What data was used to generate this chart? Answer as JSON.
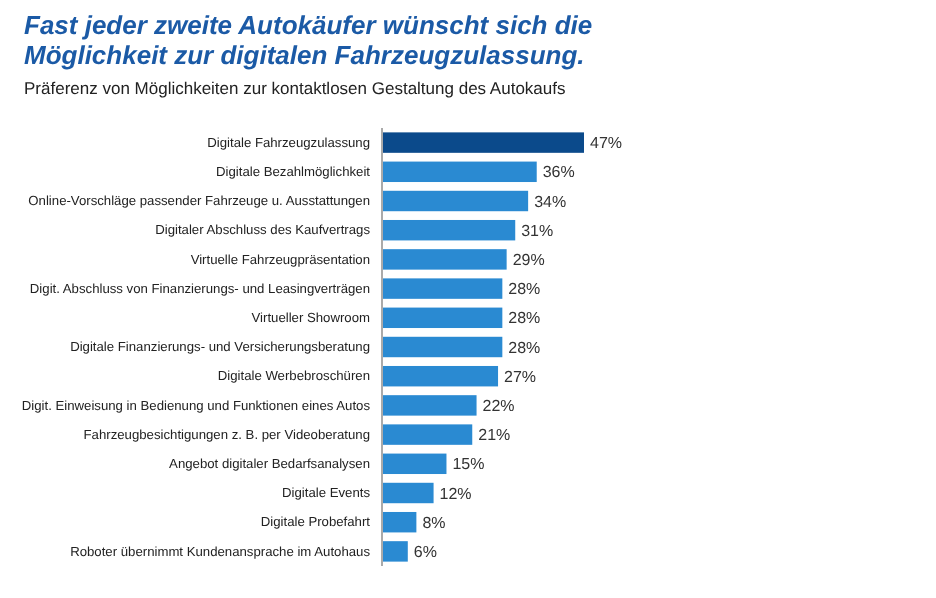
{
  "chart_data": {
    "type": "bar",
    "orientation": "horizontal",
    "title": "Fast jeder zweite Autokäufer wünscht sich die Möglichkeit zur digitalen Fahrzeugzulassung.",
    "subtitle": "Präferenz von Möglichkeiten zur kontaktlosen Gestaltung des Autokaufs",
    "categories": [
      "Digitale Fahrzeugzulassung",
      "Digitale Bezahlmöglichkeit",
      "Online-Vorschläge passender Fahrzeuge u. Ausstattungen",
      "Digitaler Abschluss des Kaufvertrags",
      "Virtuelle Fahrzeugpräsentation",
      "Digit. Abschluss von Finanzierungs- und Leasingverträgen",
      "Virtueller Showroom",
      "Digitale Finanzierungs- und Versicherungsberatung",
      "Digitale Werbebroschüren",
      "Digit. Einweisung in Bedienung und Funktionen eines Autos",
      "Fahrzeugbesichtigungen z. B. per Videoberatung",
      "Angebot digitaler Bedarfsanalysen",
      "Digitale Events",
      "Digitale Probefahrt",
      "Roboter übernimmt Kundenansprache im Autohaus"
    ],
    "values": [
      47,
      36,
      34,
      31,
      29,
      28,
      28,
      28,
      27,
      22,
      21,
      15,
      12,
      8,
      6
    ],
    "value_labels": [
      "47%",
      "36%",
      "34%",
      "31%",
      "29%",
      "28%",
      "28%",
      "28%",
      "27%",
      "22%",
      "21%",
      "15%",
      "12%",
      "8%",
      "6%"
    ],
    "colors": [
      "#0b4a8b",
      "#2a8ad2",
      "#2a8ad2",
      "#2a8ad2",
      "#2a8ad2",
      "#2a8ad2",
      "#2a8ad2",
      "#2a8ad2",
      "#2a8ad2",
      "#2a8ad2",
      "#2a8ad2",
      "#2a8ad2",
      "#2a8ad2",
      "#2a8ad2",
      "#2a8ad2"
    ]
  }
}
